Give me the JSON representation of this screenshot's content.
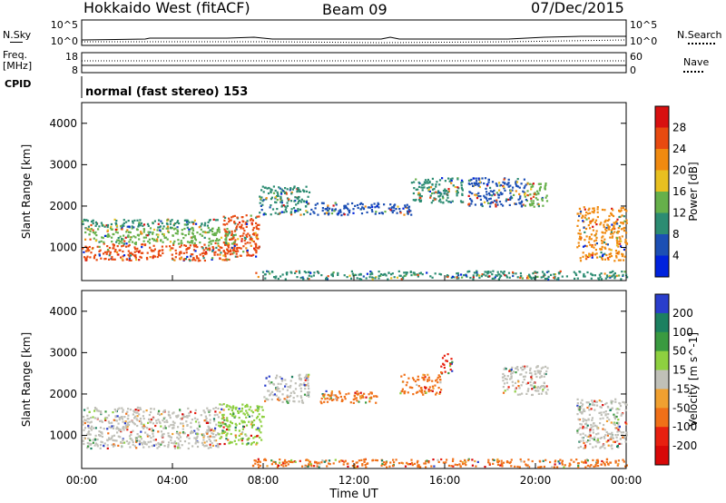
{
  "header": {
    "title": "Hokkaido West (fitACF)",
    "beam": "Beam 09",
    "date": "07/Dec/2015"
  },
  "status_panels": {
    "nsky_label": "N.Sky",
    "nsearch_label": "N.Search",
    "noise_top": "10^5",
    "noise_bottom": "10^0",
    "freq_label_1": "Freq.",
    "freq_label_2": "[MHz]",
    "freq_top": "18",
    "freq_bottom": "8",
    "nave_label": "Nave",
    "nave_top": "60",
    "nave_bottom": "0",
    "cpid_label": "CPID",
    "cpid_value": "normal (fast stereo) 153"
  },
  "chart_data": [
    {
      "type": "heatmap",
      "parameter": "Power",
      "ylabel": "Slant Range [km]",
      "xlabel": "",
      "ylim": [
        200,
        4500
      ],
      "y_ticks": [
        "1000",
        "2000",
        "3000",
        "4000"
      ],
      "colorbar_label": "Power [dB]",
      "colorbar_ticks": [
        "4",
        "8",
        "12",
        "16",
        "20",
        "24",
        "28"
      ],
      "colors": [
        "#0022dd",
        "#1c4fb4",
        "#2c8c72",
        "#66b04a",
        "#e8c020",
        "#f08a10",
        "#e84a10",
        "#d81010"
      ],
      "regions": [
        {
          "t": [
            0.0,
            6.8
          ],
          "range": [
            700,
            1100
          ],
          "value": 26
        },
        {
          "t": [
            0.0,
            6.8
          ],
          "range": [
            1100,
            1500
          ],
          "value": 14
        },
        {
          "t": [
            0.0,
            6.0
          ],
          "range": [
            1500,
            1700
          ],
          "value": 8
        },
        {
          "t": [
            6.2,
            7.8
          ],
          "range": [
            800,
            1800
          ],
          "value": 24
        },
        {
          "t": [
            7.8,
            10.0
          ],
          "range": [
            1800,
            2500
          ],
          "value": 10
        },
        {
          "t": [
            10.0,
            14.5
          ],
          "range": [
            1800,
            2100
          ],
          "value": 6
        },
        {
          "t": [
            14.5,
            16.8
          ],
          "range": [
            2100,
            2700
          ],
          "value": 8
        },
        {
          "t": [
            17.0,
            19.5
          ],
          "range": [
            2000,
            2700
          ],
          "value": 6
        },
        {
          "t": [
            19.5,
            20.5
          ],
          "range": [
            2000,
            2600
          ],
          "value": 14
        },
        {
          "t": [
            21.8,
            24.0
          ],
          "range": [
            700,
            2000
          ],
          "value": 22
        },
        {
          "t": [
            7.5,
            24.0
          ],
          "range": [
            250,
            450
          ],
          "value": 8
        }
      ]
    },
    {
      "type": "heatmap",
      "parameter": "Velocity",
      "ylabel": "Slant Range [km]",
      "xlabel": "Time UT",
      "ylim": [
        200,
        4500
      ],
      "y_ticks": [
        "1000",
        "2000",
        "3000",
        "4000"
      ],
      "x_ticks": [
        "00:00",
        "04:00",
        "08:00",
        "12:00",
        "16:00",
        "20:00",
        "00:00"
      ],
      "colorbar_label": "Velocity [m s^-1]",
      "colorbar_ticks": [
        "200",
        "100",
        "50",
        "15",
        "-15",
        "-50",
        "-100",
        "-200"
      ],
      "colors": [
        "#2a3ecc",
        "#1c8060",
        "#3a9a40",
        "#8ed040",
        "#c0c0b8",
        "#f0a030",
        "#f07018",
        "#e82010",
        "#d80808"
      ],
      "regions": [
        {
          "t": [
            0.0,
            6.0
          ],
          "range": [
            700,
            1700
          ],
          "value": 0
        },
        {
          "t": [
            6.0,
            8.0
          ],
          "range": [
            800,
            1800
          ],
          "value": 20
        },
        {
          "t": [
            8.0,
            10.0
          ],
          "range": [
            1800,
            2500
          ],
          "value": 0
        },
        {
          "t": [
            10.5,
            13.0
          ],
          "range": [
            1800,
            2100
          ],
          "value": -60
        },
        {
          "t": [
            14.0,
            15.8
          ],
          "range": [
            2000,
            2500
          ],
          "value": -70
        },
        {
          "t": [
            15.8,
            16.3
          ],
          "range": [
            2500,
            3000
          ],
          "value": -200
        },
        {
          "t": [
            18.5,
            20.5
          ],
          "range": [
            2000,
            2700
          ],
          "value": 0
        },
        {
          "t": [
            21.8,
            24.0
          ],
          "range": [
            700,
            1900
          ],
          "value": 10
        },
        {
          "t": [
            7.5,
            24.0
          ],
          "range": [
            250,
            450
          ],
          "value": -60
        }
      ]
    }
  ]
}
